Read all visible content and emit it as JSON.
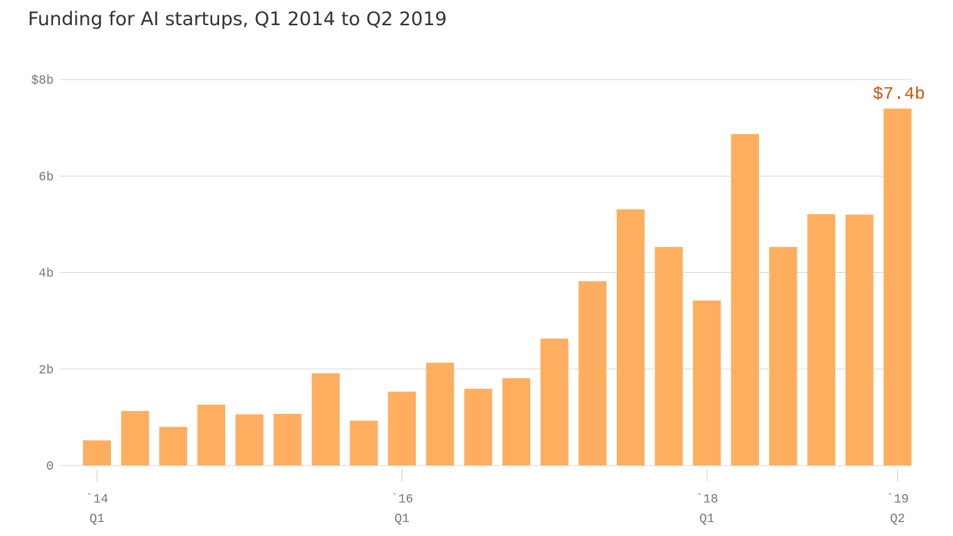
{
  "chart_data": {
    "type": "bar",
    "title": "Funding for AI startups, Q1 2014 to Q2 2019",
    "categories": [
      "`14",
      null,
      null,
      null,
      null,
      null,
      null,
      null,
      "`16",
      null,
      null,
      null,
      null,
      null,
      null,
      null,
      "`18",
      null,
      null,
      null,
      null,
      "`19"
    ],
    "category_sublabels": [
      "Q1",
      null,
      null,
      null,
      null,
      null,
      null,
      null,
      "Q1",
      null,
      null,
      null,
      null,
      null,
      null,
      null,
      "Q1",
      null,
      null,
      null,
      null,
      "Q2"
    ],
    "values": [
      0.52,
      1.13,
      0.8,
      1.26,
      1.06,
      1.07,
      1.91,
      0.93,
      1.53,
      2.13,
      1.59,
      1.81,
      2.63,
      3.82,
      5.31,
      4.53,
      3.42,
      6.87,
      4.53,
      5.21,
      5.2,
      7.4
    ],
    "value_labels": [
      null,
      null,
      null,
      null,
      null,
      null,
      null,
      null,
      null,
      null,
      null,
      null,
      null,
      null,
      null,
      null,
      null,
      null,
      null,
      null,
      null,
      "$7.4b"
    ],
    "color": "#ffae5f",
    "label_color": "#c2570c",
    "ylim": [
      0,
      8
    ],
    "yticks": [
      0,
      {
        "value": 2,
        "label": "2b"
      },
      {
        "value": 4,
        "label": "4b"
      },
      {
        "value": 6,
        "label": "6b"
      },
      {
        "value": 8,
        "label": "$8b"
      }
    ],
    "grid": true
  }
}
